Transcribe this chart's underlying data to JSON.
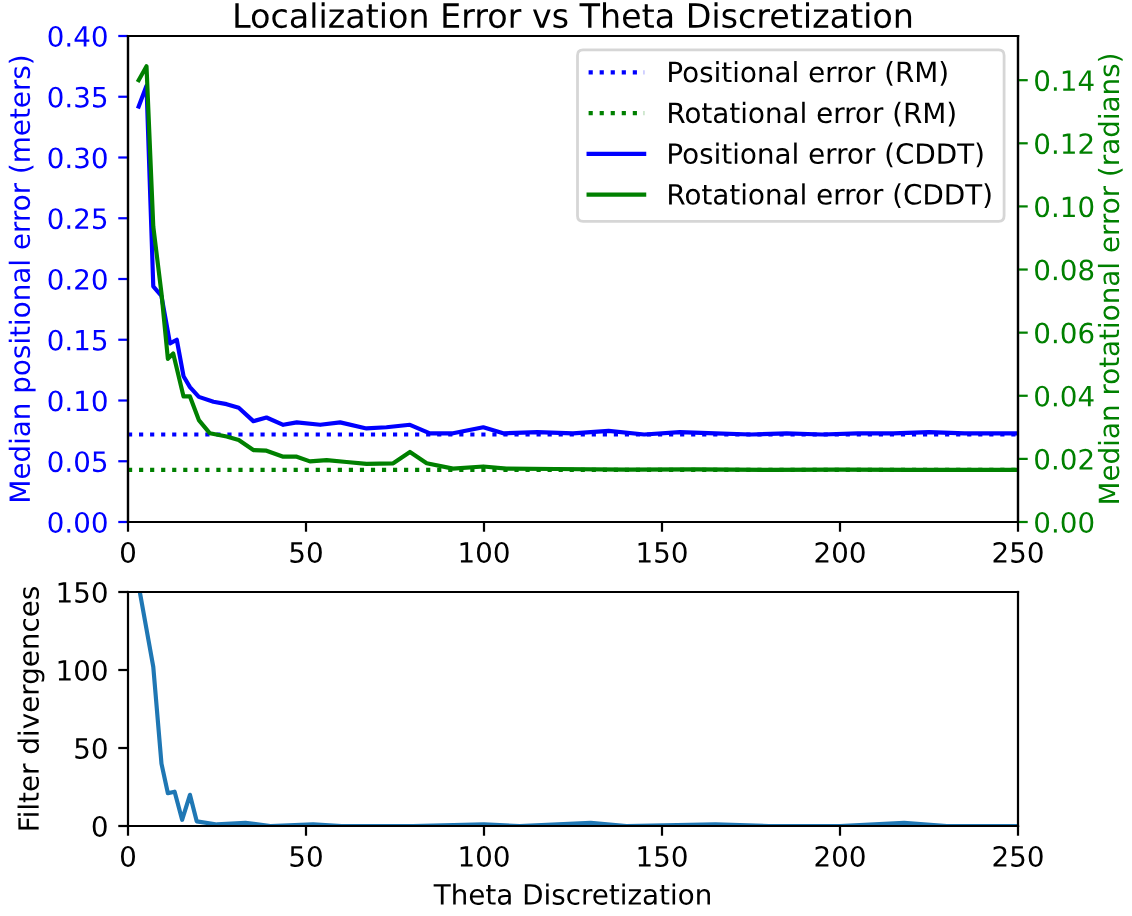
{
  "chart_data": [
    {
      "type": "line",
      "title": "Localization Error vs Theta Discretization",
      "ylabel": "Median positional error (meters)",
      "y2label": "Median rotational error (radians)",
      "xlim": [
        0,
        250
      ],
      "xticks": [
        0,
        50,
        100,
        150,
        200,
        250
      ],
      "ylim": [
        0,
        0.4
      ],
      "yticks": [
        {
          "value": 0,
          "label": "0.00"
        },
        {
          "value": 0.05,
          "label": "0.05"
        },
        {
          "value": 0.1,
          "label": "0.10"
        },
        {
          "value": 0.15,
          "label": "0.15"
        },
        {
          "value": 0.2,
          "label": "0.20"
        },
        {
          "value": 0.25,
          "label": "0.25"
        },
        {
          "value": 0.3,
          "label": "0.30"
        },
        {
          "value": 0.35,
          "label": "0.35"
        },
        {
          "value": 0.4,
          "label": "0.40"
        }
      ],
      "y2lim": [
        0,
        0.154
      ],
      "y2ticks": [
        {
          "value": 0,
          "label": "0.00"
        },
        {
          "value": 0.02,
          "label": "0.02"
        },
        {
          "value": 0.04,
          "label": "0.04"
        },
        {
          "value": 0.06,
          "label": "0.06"
        },
        {
          "value": 0.08,
          "label": "0.08"
        },
        {
          "value": 0.1,
          "label": "0.10"
        },
        {
          "value": 0.12,
          "label": "0.12"
        },
        {
          "value": 0.14,
          "label": "0.14"
        }
      ],
      "legend": "top right",
      "grid": false,
      "ref_lines": [
        {
          "axis": "y",
          "value": 0.072,
          "label": "Positional error (RM)",
          "color": "#0000ff",
          "line_style": "dotted"
        },
        {
          "axis": "y2",
          "value": 0.0165,
          "label": "Rotational error (RM)",
          "color": "#008000",
          "line_style": "dotted"
        }
      ],
      "series": [
        {
          "name": "Positional error (CDDT)",
          "color": "#0000ff",
          "x": [
            3,
            5.2,
            7.1,
            9.4,
            11.8,
            13.7,
            15.6,
            17.4,
            19.9,
            24,
            27.7,
            31.1,
            35.2,
            38.9,
            43.6,
            47.4,
            54,
            59.6,
            67,
            72.6,
            79.2,
            84.8,
            91.3,
            99.8,
            105.4,
            115,
            125,
            135,
            145,
            155,
            165,
            175,
            185,
            195,
            205,
            215,
            225,
            235,
            245,
            250
          ],
          "values": [
            0.342,
            0.359,
            0.194,
            0.186,
            0.147,
            0.15,
            0.12,
            0.111,
            0.103,
            0.099,
            0.097,
            0.094,
            0.083,
            0.086,
            0.08,
            0.082,
            0.08,
            0.082,
            0.077,
            0.078,
            0.08,
            0.073,
            0.073,
            0.078,
            0.073,
            0.074,
            0.073,
            0.075,
            0.072,
            0.074,
            0.073,
            0.072,
            0.073,
            0.072,
            0.073,
            0.073,
            0.074,
            0.073,
            0.073,
            0.073
          ]
        },
        {
          "name": "Rotational error (CDDT)",
          "color": "#008000",
          "axis": "y2",
          "x": [
            3,
            5.2,
            7.1,
            9.4,
            11.2,
            12.7,
            15.6,
            17.4,
            19.9,
            23,
            27.7,
            31.1,
            35.2,
            38.9,
            43.6,
            47.4,
            51.1,
            55.8,
            61.4,
            67,
            74.5,
            79.2,
            83.9,
            91.3,
            99.8,
            106.3,
            120,
            140,
            160,
            180,
            200,
            220,
            240,
            250
          ],
          "values": [
            0.14,
            0.1444,
            0.0936,
            0.0725,
            0.0517,
            0.0534,
            0.0398,
            0.0398,
            0.0323,
            0.0281,
            0.0271,
            0.026,
            0.0228,
            0.0226,
            0.0207,
            0.0207,
            0.0192,
            0.0196,
            0.019,
            0.0184,
            0.0186,
            0.0222,
            0.0186,
            0.0169,
            0.0176,
            0.0169,
            0.0168,
            0.0166,
            0.0167,
            0.0165,
            0.0166,
            0.0165,
            0.0165,
            0.0165
          ]
        }
      ]
    },
    {
      "type": "line",
      "xlabel": "Theta Discretization",
      "ylabel": "Filter divergences",
      "xlim": [
        0,
        250
      ],
      "xticks": [
        0,
        50,
        100,
        150,
        200,
        250
      ],
      "ylim": [
        0,
        150
      ],
      "yticks": [
        0,
        50,
        100,
        150
      ],
      "grid": false,
      "legend": false,
      "series": [
        {
          "color": "#1f77b4",
          "x": [
            3.4,
            7.1,
            9.4,
            11.2,
            13.1,
            15.2,
            17.4,
            19.3,
            25,
            33,
            40,
            52,
            60,
            80,
            100,
            110,
            130,
            140,
            165,
            180,
            200,
            218,
            230,
            250
          ],
          "values": [
            149,
            102,
            40,
            21,
            22,
            4,
            20,
            3,
            1,
            2,
            0,
            1,
            0,
            0,
            1,
            0,
            2,
            0,
            1,
            0,
            0,
            2,
            0,
            0
          ]
        }
      ]
    }
  ]
}
